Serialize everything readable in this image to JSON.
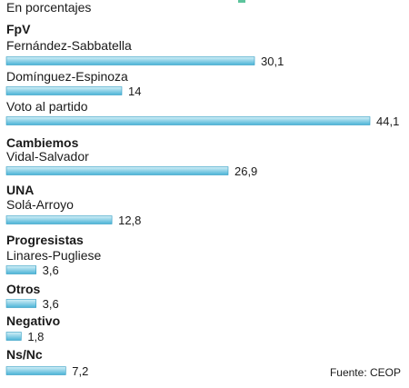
{
  "chart_data": {
    "type": "bar",
    "orientation": "horizontal",
    "subtitle": "En porcentajes",
    "source": "Fuente: CEOP",
    "xlim": [
      0,
      44.1
    ],
    "groups": [
      {
        "name": "FpV",
        "items": [
          {
            "label": "Fernández-Sabbatella",
            "value": 30.1,
            "value_label": "30,1"
          },
          {
            "label": "Domínguez-Espinoza",
            "value": 14,
            "value_label": "14"
          },
          {
            "label": "Voto al partido",
            "value": 44.1,
            "value_label": "44,1"
          }
        ]
      },
      {
        "name": "Cambiemos",
        "items": [
          {
            "label": "Vidal-Salvador",
            "value": 26.9,
            "value_label": "26,9"
          }
        ]
      },
      {
        "name": "UNA",
        "items": [
          {
            "label": "Solá-Arroyo",
            "value": 12.8,
            "value_label": "12,8"
          }
        ]
      },
      {
        "name": "Progresistas",
        "items": [
          {
            "label": "Linares-Pugliese",
            "value": 3.6,
            "value_label": "3,6"
          }
        ]
      },
      {
        "name": "Otros",
        "items": [
          {
            "label": "",
            "value": 3.6,
            "value_label": "3,6"
          }
        ]
      },
      {
        "name": "Negativo",
        "items": [
          {
            "label": "",
            "value": 1.8,
            "value_label": "1,8"
          }
        ]
      },
      {
        "name": "Ns/Nc",
        "items": [
          {
            "label": "",
            "value": 7.2,
            "value_label": "7,2"
          }
        ]
      }
    ],
    "colors": {
      "bar_top": "#d4f0f8",
      "bar_bottom": "#4ab3d6",
      "bar_edge": "#2f9cc2",
      "text": "#1a1a1a"
    },
    "grid": false,
    "legend": "none"
  }
}
